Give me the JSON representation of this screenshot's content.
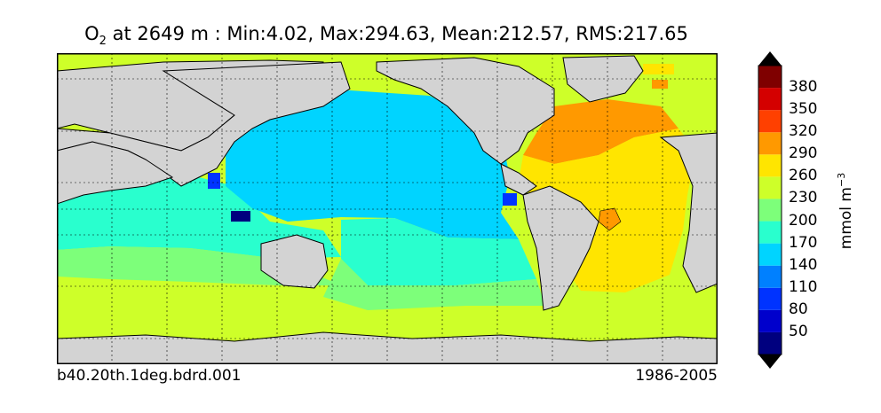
{
  "title": {
    "species": "O",
    "species_sub": "2",
    "rest": " at 2649 m : Min:4.02, Max:294.63, Mean:212.57, RMS:217.65"
  },
  "footer": {
    "case": "b40.20th.1deg.bdrd.001",
    "period": "1986-2005"
  },
  "colorbar": {
    "units_base": "mmol m",
    "units_exp": "−3",
    "ticks": [
      "50",
      "80",
      "110",
      "140",
      "170",
      "200",
      "230",
      "260",
      "290",
      "320",
      "350",
      "380"
    ],
    "colors": [
      "#00007f",
      "#0000cc",
      "#0033ff",
      "#0080ff",
      "#00d4ff",
      "#29ffce",
      "#7dff7a",
      "#ceff29",
      "#ffe500",
      "#ff9900",
      "#ff4000",
      "#d40000",
      "#7f0000"
    ]
  },
  "map_colors": {
    "land": "#d3d3d3",
    "missing": "#ffffff",
    "pacific": "#00d4ff",
    "indian": "#29ffce",
    "southern": "#ceff29",
    "band": "#7dff7a",
    "atlantic_tropic": "#ffe500",
    "atlantic_north": "#ff9900",
    "deep_blue": "#0033ff",
    "navy": "#00007f"
  }
}
